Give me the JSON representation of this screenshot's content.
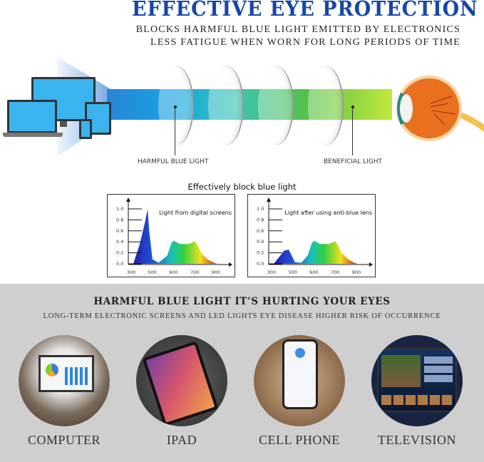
{
  "header": {
    "title": "EFFECTIVE EYE PROTECTION",
    "line1": "BLOCKS HARMFUL BLUE LIGHT EMITTED BY ELECTRONICS",
    "line2": "LESS FATIGUE WHEN WORN FOR LONG PERIODS OF TIME"
  },
  "diagram": {
    "harmful_label": "HARMFUL BLUE LIGHT",
    "beneficial_label": "BENEFICIAL LIGHT"
  },
  "charts_title": "Effectively block blue light",
  "chart_data": [
    {
      "type": "area",
      "title": "Light from digital screens",
      "x_ticks": [
        300,
        500,
        600,
        700,
        900
      ],
      "y_ticks": [
        "0.0",
        "0.2",
        "0.4",
        "0.6",
        "0.8",
        "1.0"
      ],
      "ylim": [
        0,
        1
      ],
      "x": [
        320,
        380,
        430,
        455,
        470,
        500,
        530,
        570,
        590,
        600,
        630,
        670,
        700,
        720,
        760,
        820,
        880,
        910
      ],
      "y": [
        0,
        0.35,
        0.75,
        1.0,
        0.6,
        0.08,
        0.02,
        0.15,
        0.38,
        0.42,
        0.36,
        0.36,
        0.41,
        0.36,
        0.2,
        0.08,
        0.02,
        0
      ]
    },
    {
      "type": "area",
      "title": "Light after using anti-blue lens",
      "x_ticks": [
        300,
        500,
        600,
        700,
        900
      ],
      "y_ticks": [
        "0.0",
        "0.2",
        "0.4",
        "0.6",
        "0.8",
        "1.0"
      ],
      "ylim": [
        0,
        1
      ],
      "x": [
        320,
        370,
        420,
        460,
        490,
        510,
        540,
        570,
        590,
        600,
        630,
        670,
        700,
        720,
        760,
        820,
        880,
        910
      ],
      "y": [
        0,
        0.12,
        0.24,
        0.26,
        0.15,
        0.03,
        0.02,
        0.15,
        0.38,
        0.42,
        0.36,
        0.36,
        0.41,
        0.36,
        0.2,
        0.08,
        0.02,
        0
      ]
    }
  ],
  "section": {
    "title": "HARMFUL BLUE LIGHT IT’S HURTING YOUR EYES",
    "subtitle": "LONG-TERM ELECTRONIC SCREENS AND LED LIGHTS EYE DISEASE HIGHER RISK OF OCCURRENCE",
    "items": [
      {
        "label": "COMPUTER"
      },
      {
        "label": "IPAD"
      },
      {
        "label": "CELL PHONE"
      },
      {
        "label": "TELEVISION"
      }
    ]
  },
  "colors": {
    "title": "#1747a6",
    "band": "#cfcfcf"
  }
}
